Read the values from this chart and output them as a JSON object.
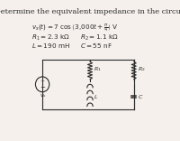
{
  "title": "Determine the equivalent impedance in the circuit",
  "eq1": "v_s(t) = 7 cos (3,000t + π/4) V",
  "param1": "R₁ = 2.3 kΩ",
  "param2": "R₂ = 1.1 kΩ",
  "param3": "L = 190 mH",
  "param4": "C = 55 nF",
  "bg_color": "#f5f0eb",
  "text_color": "#2b2b2b",
  "circuit_color": "#2b2b2b",
  "title_fontsize": 6.0,
  "body_fontsize": 5.2,
  "fig_width": 2.0,
  "fig_height": 1.56
}
